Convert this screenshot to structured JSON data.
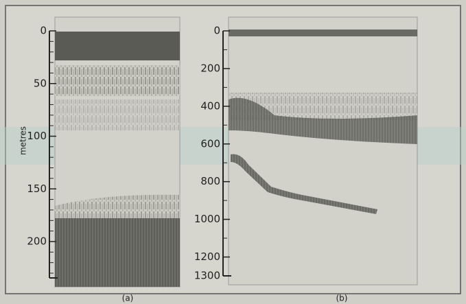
{
  "axis_label": "metres",
  "panels": [
    {
      "ticks": [
        0,
        50,
        100,
        150,
        200
      ],
      "caption": "(a)"
    },
    {
      "ticks": [
        0,
        200,
        400,
        600,
        800,
        1000,
        1200,
        1300
      ],
      "caption": "(b)"
    }
  ]
}
